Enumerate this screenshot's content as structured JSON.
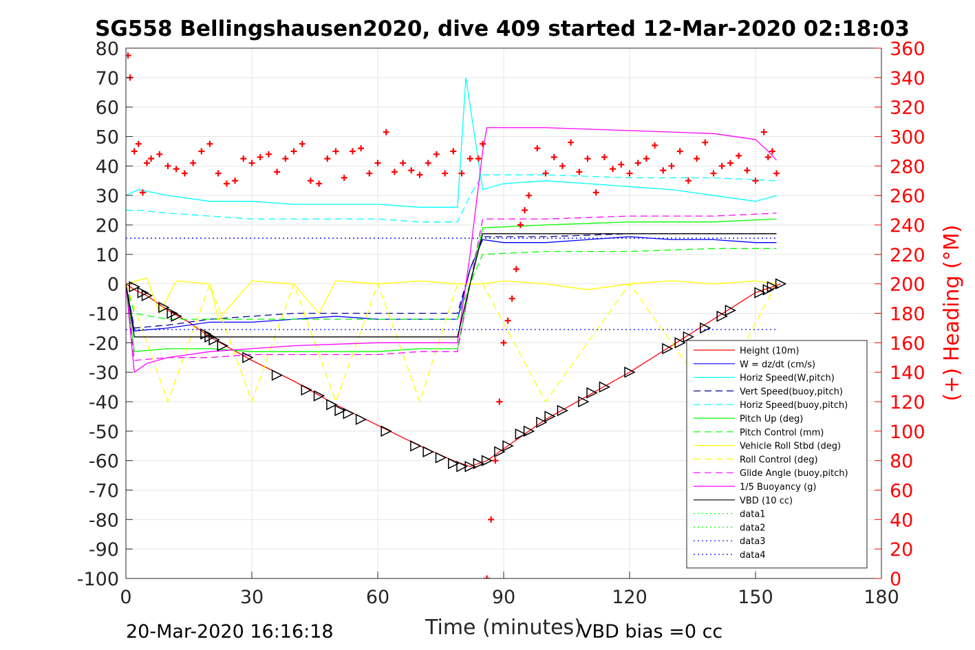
{
  "chart_data": {
    "type": "line",
    "title": "SG558 Bellingshausen2020, dive 409 started 12-Mar-2020 02:18:03",
    "xlabel": "Time (minutes)",
    "ylabel": "",
    "ylabel_right": "(+) Heading (°M)",
    "xlim": [
      0,
      180
    ],
    "ylim": [
      -100,
      80
    ],
    "ylim_right": [
      0,
      360
    ],
    "x_ticks": [
      "0",
      "30",
      "60",
      "90",
      "120",
      "150",
      "180"
    ],
    "y_ticks": [
      "80",
      "70",
      "60",
      "50",
      "40",
      "30",
      "20",
      "10",
      "0",
      "-10",
      "-20",
      "-30",
      "-40",
      "-50",
      "-60",
      "-70",
      "-80",
      "-90",
      "-100"
    ],
    "y_ticks_right": [
      "360",
      "340",
      "320",
      "300",
      "280",
      "260",
      "240",
      "220",
      "200",
      "180",
      "160",
      "140",
      "120",
      "100",
      "80",
      "60",
      "40",
      "20",
      "0"
    ],
    "grid": true,
    "legend_position": "bottom-right",
    "footer_left": "20-Mar-2020 16:16:18",
    "footer_right": "VBD bias =0 cc",
    "series": [
      {
        "name": "Height (10m)",
        "color": "#ff0000",
        "style": "solid",
        "x": [
          0,
          2,
          5,
          10,
          15,
          20,
          25,
          30,
          40,
          50,
          60,
          70,
          78,
          82,
          86,
          90,
          100,
          110,
          120,
          130,
          140,
          150,
          156
        ],
        "y": [
          0,
          -2,
          -4,
          -9,
          -13,
          -18,
          -22,
          -26,
          -33,
          -41,
          -48,
          -55,
          -60,
          -62,
          -60,
          -56,
          -46,
          -38,
          -30,
          -21,
          -12,
          -3,
          0
        ]
      },
      {
        "name": "W = dz/dt (cm/s)",
        "color": "#0000ff",
        "style": "solid",
        "x": [
          0,
          2,
          10,
          20,
          30,
          40,
          50,
          60,
          70,
          79,
          82,
          85,
          90,
          100,
          110,
          120,
          130,
          140,
          150,
          155
        ],
        "y": [
          0,
          -16,
          -15,
          -13,
          -13,
          -12,
          -11,
          -12,
          -12,
          -12,
          5,
          15,
          14,
          14,
          15,
          16,
          15,
          15,
          14,
          14
        ]
      },
      {
        "name": "Horiz Speed(W,pitch)",
        "color": "#00ffff",
        "style": "solid",
        "x": [
          0,
          3,
          10,
          20,
          30,
          40,
          50,
          60,
          70,
          79,
          81,
          85,
          90,
          100,
          110,
          120,
          130,
          140,
          150,
          155
        ],
        "y": [
          30,
          32,
          30,
          28,
          28,
          27,
          27,
          27,
          26,
          26,
          70,
          32,
          34,
          35,
          34,
          33,
          32,
          30,
          28,
          30
        ]
      },
      {
        "name": "Vert Speed(buoy,pitch)",
        "color": "#00008b",
        "style": "dashed",
        "x": [
          0,
          2,
          10,
          20,
          30,
          40,
          50,
          60,
          70,
          79,
          82,
          85,
          100,
          120,
          140,
          155
        ],
        "y": [
          0,
          -15,
          -14,
          -12,
          -11,
          -10,
          -10,
          -10,
          -10,
          -10,
          5,
          16,
          16,
          17,
          17,
          17
        ]
      },
      {
        "name": "Horiz Speed(buoy,pitch)",
        "color": "#00ffff",
        "style": "dashed",
        "x": [
          0,
          3,
          10,
          20,
          30,
          40,
          50,
          60,
          70,
          79,
          82,
          85,
          100,
          120,
          140,
          155
        ],
        "y": [
          25,
          25,
          24,
          23,
          22,
          22,
          22,
          22,
          21,
          21,
          30,
          37,
          37,
          36,
          36,
          35
        ]
      },
      {
        "name": "Pitch Up (deg)",
        "color": "#00ff00",
        "style": "solid",
        "x": [
          0,
          2,
          10,
          20,
          30,
          40,
          50,
          60,
          70,
          79,
          82,
          85,
          100,
          120,
          140,
          155
        ],
        "y": [
          0,
          -23,
          -22,
          -22,
          -23,
          -23,
          -23,
          -23,
          -22,
          -22,
          0,
          19,
          20,
          21,
          21,
          22
        ]
      },
      {
        "name": "Pitch Control (mm)",
        "color": "#00ff00",
        "style": "dashed",
        "x": [
          0,
          2,
          10,
          20,
          30,
          40,
          50,
          60,
          70,
          79,
          82,
          85,
          100,
          120,
          140,
          155
        ],
        "y": [
          0,
          -10,
          -12,
          -12,
          -12,
          -12,
          -12,
          -12,
          -12,
          -12,
          0,
          10,
          11,
          11,
          12,
          12
        ]
      },
      {
        "name": "Vehicle Roll Stbd (deg)",
        "color": "#ffff00",
        "style": "solid",
        "x": [
          0,
          5,
          8,
          12,
          20,
          22,
          30,
          40,
          46,
          50,
          60,
          70,
          79,
          85,
          90,
          100,
          110,
          120,
          130,
          140,
          150,
          155
        ],
        "y": [
          0,
          2,
          -10,
          1,
          0,
          -12,
          1,
          0,
          -10,
          1,
          0,
          1,
          0,
          0,
          1,
          0,
          -2,
          0,
          1,
          0,
          1,
          0
        ]
      },
      {
        "name": "Roll Control (deg)",
        "color": "#ffff00",
        "style": "dashed",
        "x": [
          0,
          10,
          20,
          30,
          40,
          50,
          60,
          70,
          79,
          85,
          100,
          120,
          140,
          155
        ],
        "y": [
          0,
          -40,
          0,
          -40,
          0,
          -40,
          0,
          -40,
          0,
          0,
          -40,
          0,
          -40,
          0
        ]
      },
      {
        "name": "Glide Angle (buoy,pitch)",
        "color": "#ff00ff",
        "style": "dashed",
        "x": [
          0,
          2,
          10,
          20,
          30,
          40,
          50,
          60,
          70,
          79,
          82,
          85,
          100,
          120,
          140,
          155
        ],
        "y": [
          0,
          -26,
          -25,
          -25,
          -24,
          -24,
          -24,
          -24,
          -23,
          -23,
          0,
          22,
          22,
          23,
          23,
          24
        ]
      },
      {
        "name": "1/5 Buoyancy (g)",
        "color": "#ff00ff",
        "style": "solid",
        "x": [
          0,
          2,
          5,
          10,
          20,
          40,
          60,
          79,
          82,
          85,
          86,
          100,
          120,
          140,
          150,
          153,
          155
        ],
        "y": [
          0,
          -30,
          -27,
          -25,
          -23,
          -21,
          -20,
          -20,
          10,
          45,
          53,
          53,
          52,
          51,
          49,
          45,
          42
        ]
      },
      {
        "name": "VBD (10 cc)",
        "color": "#000000",
        "style": "solid",
        "x": [
          0,
          2,
          79,
          82,
          85,
          155
        ],
        "y": [
          0,
          -18,
          -18,
          0,
          17,
          17
        ]
      },
      {
        "name": "data1",
        "color": "#00ff00",
        "style": "dotted",
        "x": [],
        "y": []
      },
      {
        "name": "data2",
        "color": "#00ff00",
        "style": "dotted",
        "x": [],
        "y": []
      },
      {
        "name": "data3",
        "color": "#0000ff",
        "style": "dotted",
        "x": [
          0,
          155
        ],
        "y": [
          15.5,
          15.5
        ]
      },
      {
        "name": "data4",
        "color": "#0000ff",
        "style": "dotted",
        "x": [
          0,
          155
        ],
        "y": [
          -15.5,
          -15.5
        ]
      }
    ],
    "heading": {
      "axis": "right",
      "color": "#ff0000",
      "marker": "+",
      "x": [
        0.5,
        1,
        2,
        3,
        4,
        5,
        6,
        8,
        10,
        12,
        14,
        16,
        18,
        20,
        22,
        24,
        26,
        28,
        30,
        32,
        34,
        36,
        38,
        40,
        42,
        44,
        46,
        48,
        50,
        52,
        54,
        56,
        58,
        60,
        62,
        64,
        66,
        68,
        70,
        72,
        74,
        76,
        78,
        80,
        82,
        84,
        85,
        86,
        87,
        88,
        89,
        90,
        91,
        92,
        93,
        94,
        95,
        96,
        98,
        100,
        102,
        104,
        106,
        108,
        110,
        112,
        114,
        116,
        118,
        120,
        122,
        124,
        126,
        128,
        130,
        132,
        134,
        136,
        138,
        140,
        142,
        144,
        146,
        148,
        150,
        152,
        153,
        154,
        155
      ],
      "y": [
        355,
        340,
        290,
        295,
        262,
        282,
        285,
        288,
        280,
        278,
        275,
        282,
        290,
        295,
        275,
        268,
        270,
        285,
        282,
        286,
        288,
        276,
        285,
        290,
        295,
        270,
        268,
        285,
        290,
        272,
        290,
        292,
        275,
        282,
        303,
        276,
        282,
        277,
        274,
        282,
        288,
        275,
        290,
        275,
        285,
        285,
        295,
        0,
        40,
        80,
        120,
        160,
        175,
        190,
        210,
        240,
        250,
        260,
        292,
        275,
        286,
        280,
        296,
        276,
        285,
        262,
        286,
        278,
        281,
        275,
        282,
        285,
        294,
        277,
        280,
        290,
        270,
        285,
        296,
        275,
        280,
        282,
        287,
        277,
        270,
        303,
        286,
        290,
        275
      ]
    },
    "markers": {
      "symbol": "triangle",
      "color": "#000000",
      "x": [
        2,
        4,
        5,
        9,
        11,
        12,
        19,
        20,
        21,
        23,
        29,
        36,
        43,
        46,
        49,
        51,
        53,
        56,
        62,
        69,
        72,
        75,
        78,
        80,
        82,
        84,
        86,
        89,
        91,
        94,
        96,
        99,
        101,
        104,
        109,
        111,
        114,
        120,
        129,
        132,
        134,
        138,
        142,
        144,
        151,
        153,
        154,
        156
      ],
      "y": [
        -1,
        -3,
        -4,
        -8,
        -10,
        -11,
        -17,
        -18,
        -19,
        -21,
        -25,
        -31,
        -36,
        -38,
        -41,
        -43,
        -44,
        -46,
        -50,
        -55,
        -57,
        -59,
        -61,
        -62,
        -62,
        -61,
        -60,
        -57,
        -55,
        -51,
        -50,
        -47,
        -45,
        -43,
        -40,
        -37,
        -35,
        -30,
        -22,
        -20,
        -18,
        -15,
        -11,
        -9,
        -3,
        -2,
        -1,
        0
      ]
    }
  }
}
